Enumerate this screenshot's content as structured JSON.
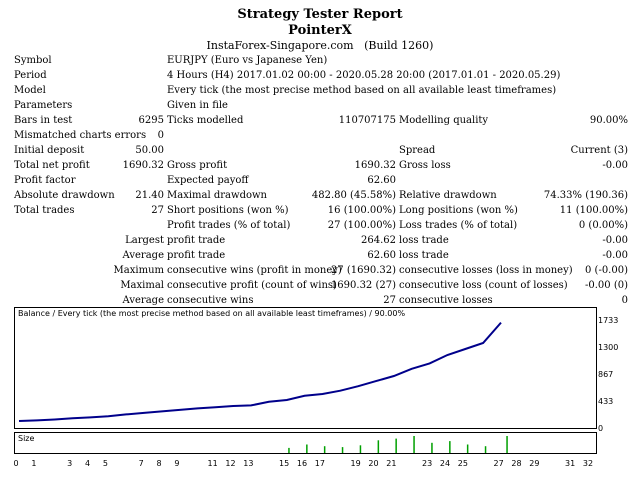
{
  "report": {
    "title": "Strategy Tester Report",
    "ea_name": "PointerX",
    "broker": "InstaForex-Singapore.com",
    "build": "(Build 1260)"
  },
  "rows": {
    "symbol_label": "Symbol",
    "symbol_value": "EURJPY (Euro vs Japanese Yen)",
    "period_label": "Period",
    "period_value": "4 Hours (H4) 2017.01.02 00:00 - 2020.05.28 20:00 (2017.01.01 - 2020.05.29)",
    "model_label": "Model",
    "model_value": "Every tick (the most precise method based on all available least timeframes)",
    "parameters_label": "Parameters",
    "parameters_value": "Given in file",
    "bars_label": "Bars in test",
    "bars_value": "6295",
    "ticks_label": "Ticks modelled",
    "ticks_value": "110707175",
    "quality_label": "Modelling quality",
    "quality_value": "90.00%",
    "mismatched_label": "Mismatched charts errors",
    "mismatched_value": "0",
    "deposit_label": "Initial deposit",
    "deposit_value": "50.00",
    "spread_label": "Spread",
    "spread_value": "Current (3)",
    "netprofit_label": "Total net profit",
    "netprofit_value": "1690.32",
    "grossprofit_label": "Gross profit",
    "grossprofit_value": "1690.32",
    "grossloss_label": "Gross loss",
    "grossloss_value": "-0.00",
    "pf_label": "Profit factor",
    "payoff_label": "Expected payoff",
    "payoff_value": "62.60",
    "absdd_label": "Absolute drawdown",
    "absdd_value": "21.40",
    "maxdd_label": "Maximal drawdown",
    "maxdd_value": "482.80 (45.58%)",
    "reldd_label": "Relative drawdown",
    "reldd_value": "74.33% (190.36)",
    "trades_label": "Total trades",
    "trades_value": "27",
    "short_label": "Short positions (won %)",
    "short_value": "16 (100.00%)",
    "long_label": "Long positions (won %)",
    "long_value": "11 (100.00%)",
    "ptrades_label": "Profit trades (% of total)",
    "ptrades_value": "27 (100.00%)",
    "ltrades_label": "Loss trades (% of total)",
    "ltrades_value": "0 (0.00%)",
    "largest_label": "Largest",
    "lprofit_label": "profit trade",
    "lprofit_value": "264.62",
    "lloss_label": "loss trade",
    "lloss_value": "-0.00",
    "average_label": "Average",
    "aprofit_label": "profit trade",
    "aprofit_value": "62.60",
    "aloss_label": "loss trade",
    "aloss_value": "-0.00",
    "maximum_label": "Maximum",
    "mcw_label": "consecutive wins (profit in money)",
    "mcw_value": "27 (1690.32)",
    "mcl_label": "consecutive losses (loss in money)",
    "mcl_value": "0 (-0.00)",
    "maximal_label": "Maximal",
    "mcp_label": "consecutive profit (count of wins)",
    "mcp_value": "1690.32 (27)",
    "mcloss_label": "consecutive loss (count of losses)",
    "mcloss_value": "-0.00 (0)",
    "average2_label": "Average",
    "acw_label": "consecutive wins",
    "acw_value": "27",
    "acl_label": "consecutive losses",
    "acl_value": "0"
  },
  "chart_data": [
    {
      "type": "line",
      "title": "Balance / Every tick (the most precise method based on all available least timeframes) / 90.00%",
      "y_ticks": [
        "1733",
        "1300",
        "867",
        "433",
        "0"
      ],
      "ylim": [
        0,
        1733
      ],
      "x": [
        0,
        1,
        2,
        3,
        4,
        5,
        6,
        7,
        8,
        9,
        10,
        11,
        12,
        13,
        14,
        15,
        16,
        17,
        18,
        19,
        20,
        21,
        22,
        23,
        24,
        25,
        26,
        27
      ],
      "series": [
        {
          "values": [
            50,
            60,
            75,
            95,
            110,
            130,
            160,
            185,
            210,
            235,
            260,
            280,
            300,
            310,
            370,
            400,
            470,
            500,
            555,
            630,
            715,
            800,
            920,
            1010,
            1150,
            1250,
            1350,
            1690
          ]
        }
      ],
      "color": "#00008b"
    },
    {
      "type": "bar",
      "title": "Size",
      "x_ticks": [
        "0",
        "1",
        "3",
        "4",
        "5",
        "7",
        "8",
        "9",
        "11",
        "12",
        "13",
        "15",
        "16",
        "17",
        "19",
        "20",
        "21",
        "23",
        "24",
        "25",
        "27",
        "28",
        "29",
        "31",
        "32"
      ],
      "x_positions": [
        0,
        1,
        3,
        4,
        5,
        7,
        8,
        9,
        11,
        12,
        13,
        15,
        16,
        17,
        19,
        20,
        21,
        23,
        24,
        25,
        27,
        28,
        29,
        31,
        32
      ],
      "xlim": [
        0,
        32
      ],
      "bars": [
        {
          "x": 15.2,
          "value": 0.3,
          "color": "#00a000"
        },
        {
          "x": 16.2,
          "value": 0.5,
          "color": "#00a000"
        },
        {
          "x": 17.2,
          "value": 0.4,
          "color": "#00a000"
        },
        {
          "x": 18.2,
          "value": 0.35,
          "color": "#00a000"
        },
        {
          "x": 19.2,
          "value": 0.45,
          "color": "#00a000"
        },
        {
          "x": 20.2,
          "value": 0.75,
          "color": "#00a000"
        },
        {
          "x": 21.2,
          "value": 0.85,
          "color": "#00a000"
        },
        {
          "x": 22.2,
          "value": 1.0,
          "color": "#00a000"
        },
        {
          "x": 23.2,
          "value": 0.6,
          "color": "#00a000"
        },
        {
          "x": 24.2,
          "value": 0.7,
          "color": "#00a000"
        },
        {
          "x": 25.2,
          "value": 0.5,
          "color": "#00a000"
        },
        {
          "x": 26.2,
          "value": 0.4,
          "color": "#00a000"
        },
        {
          "x": 27.4,
          "value": 1.0,
          "color": "#00a000"
        }
      ]
    }
  ]
}
